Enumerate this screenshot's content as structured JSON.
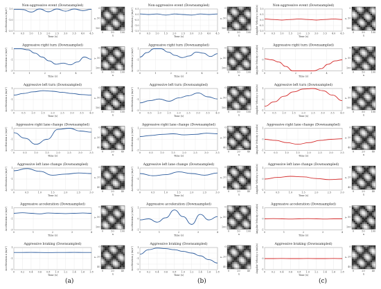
{
  "panel_labels": [
    "(a)",
    "(b)",
    "(c)"
  ],
  "chart_data": [
    {
      "type": "line",
      "column": "a",
      "title": "Non-aggressive event (Downsampled)",
      "ylabel": "Acceleration x (m/s²)",
      "xlabel": "Time (s)",
      "xticks": [
        "0",
        "0.5",
        "1.0",
        "1.5",
        "2.0",
        "2.5",
        "3.0",
        "3.5",
        "4.0",
        "4.5"
      ],
      "yticks": [
        "-3.0",
        "-1.0",
        "1.0"
      ],
      "color": "#2a5a9c",
      "x": [
        0,
        0.5,
        1,
        1.5,
        2,
        2.5,
        3,
        3.5,
        4,
        4.5
      ],
      "y": [
        0.95,
        0.9,
        0.45,
        1.1,
        0.5,
        1.05,
        0.6,
        1.0,
        0.7,
        0.95
      ],
      "matrix": {
        "xticks": [
          "0",
          "50",
          "100"
        ],
        "yticks": [
          "0",
          "50",
          "100"
        ],
        "xlabel": "x",
        "ylabel": "y"
      }
    },
    {
      "type": "line",
      "column": "b",
      "title": "Non-aggressive event (Downsampled)",
      "ylabel": "Acceleration y (m/s²)",
      "xlabel": "Time (s)",
      "xticks": [
        "0",
        "0.5",
        "1.0",
        "1.5",
        "2.0",
        "2.5",
        "3.0",
        "3.5",
        "4.0",
        "4.5"
      ],
      "yticks": [
        "-1.5",
        "-1.0",
        "-0.5",
        "0.0",
        "0.5"
      ],
      "color": "#2a5a9c",
      "x": [
        0,
        0.5,
        1,
        1.5,
        2,
        2.5,
        3,
        3.5,
        4,
        4.5
      ],
      "y": [
        0.05,
        0.0,
        0.05,
        -0.05,
        0.05,
        0.0,
        -0.05,
        0.05,
        0.0,
        0.05
      ],
      "matrix": {
        "xticks": [
          "0",
          "50",
          "100"
        ],
        "yticks": [
          "0",
          "50",
          "100"
        ],
        "xlabel": "x",
        "ylabel": "y"
      }
    },
    {
      "type": "line",
      "column": "c",
      "title": "Non-aggressive event (Downsampled)",
      "ylabel": "Angular Velocity z (rad/s)",
      "xlabel": "Time (s)",
      "xticks": [
        "0",
        "0.5",
        "1.0",
        "1.5",
        "2.0",
        "2.5",
        "3.0",
        "3.5",
        "4.0",
        "4.5"
      ],
      "yticks": [
        "-1.0",
        "-0.5",
        "0.0",
        "0.5",
        "1.0"
      ],
      "color": "#d42a2a",
      "x": [
        0,
        0.5,
        1,
        1.5,
        2,
        2.5,
        3,
        3.5,
        4,
        4.5
      ],
      "y": [
        0.1,
        0.05,
        0.0,
        0.05,
        0.1,
        0.05,
        0.0,
        0.05,
        0.1,
        0.05
      ],
      "matrix": {
        "xticks": [
          "0",
          "50",
          "100"
        ],
        "yticks": [
          "0",
          "50",
          "100"
        ],
        "xlabel": "x",
        "ylabel": "y"
      }
    },
    {
      "type": "line",
      "column": "a",
      "title": "Aggressive right turn (Downsampled)",
      "ylabel": "Acceleration x (m/s²)",
      "xlabel": "Time (s)",
      "xticks": [
        "0",
        "1",
        "2",
        "3",
        "4",
        "5"
      ],
      "yticks": [
        "-3",
        "-1",
        "1"
      ],
      "color": "#2a5a9c",
      "x": [
        0,
        0.5,
        1,
        1.5,
        2,
        2.5,
        3,
        3.5,
        4,
        4.5,
        5,
        5.5
      ],
      "y": [
        1.1,
        1.0,
        0.8,
        0.2,
        -0.5,
        -1.2,
        -1.8,
        -1.6,
        -1.9,
        -1.4,
        -0.5,
        -0.9
      ],
      "matrix": {
        "xticks": [
          "0",
          "50",
          "100"
        ],
        "yticks": [
          "0",
          "50",
          "100"
        ],
        "xlabel": "x",
        "ylabel": "y"
      }
    },
    {
      "type": "line",
      "column": "b",
      "title": "Aggressive right turn (Downsampled)",
      "ylabel": "Acceleration y (m/s²)",
      "xlabel": "Time (s)",
      "xticks": [
        "0",
        "1",
        "2",
        "3",
        "4",
        "5"
      ],
      "yticks": [
        "-3",
        "-1",
        "1"
      ],
      "color": "#2a5a9c",
      "x": [
        0,
        0.5,
        1,
        1.5,
        2,
        2.5,
        3,
        3.5,
        4,
        4.5,
        5,
        5.5
      ],
      "y": [
        -0.5,
        0.3,
        1.2,
        1.0,
        0.4,
        -0.2,
        -0.6,
        -0.3,
        0.4,
        0.2,
        -0.4,
        0.1
      ],
      "matrix": {
        "xticks": [
          "0",
          "50",
          "100"
        ],
        "yticks": [
          "0",
          "50",
          "100"
        ],
        "xlabel": "x",
        "ylabel": "y"
      }
    },
    {
      "type": "line",
      "column": "c",
      "title": "Aggressive right turn (Downsampled)",
      "ylabel": "Angular Velocity z (rad/s)",
      "xlabel": "Time (s)",
      "xticks": [
        "0",
        "1",
        "2",
        "3",
        "4",
        "5"
      ],
      "yticks": [
        "-1",
        "0",
        "1"
      ],
      "color": "#d42a2a",
      "x": [
        0,
        0.5,
        1,
        1.5,
        2,
        2.5,
        3,
        3.5,
        4,
        4.5,
        5,
        5.5
      ],
      "y": [
        0.1,
        0.0,
        -0.2,
        -0.6,
        -1.0,
        -1.2,
        -1.25,
        -1.1,
        -0.8,
        -0.4,
        -0.1,
        0.0
      ],
      "matrix": {
        "xticks": [
          "0",
          "50",
          "100"
        ],
        "yticks": [
          "0",
          "50",
          "100"
        ],
        "xlabel": "x",
        "ylabel": "y"
      }
    },
    {
      "type": "line",
      "column": "a",
      "title": "Aggressive left turn (Downsampled)",
      "ylabel": "Acceleration x (m/s²)",
      "xlabel": "Time (s)",
      "xticks": [
        "0",
        "0.5",
        "1.0",
        "1.5",
        "2.0",
        "2.5",
        "3.0",
        "3.5",
        "4.0"
      ],
      "yticks": [
        "-3",
        "-1",
        "1"
      ],
      "color": "#2a5a9c",
      "x": [
        0,
        0.5,
        1,
        1.5,
        2,
        2.5,
        3,
        3.5,
        4
      ],
      "y": [
        -0.2,
        0.1,
        0.4,
        0.6,
        0.5,
        0.3,
        0.1,
        -0.1,
        -0.2
      ],
      "matrix": {
        "xticks": [
          "0",
          "50",
          "100"
        ],
        "yticks": [
          "0",
          "50",
          "100"
        ],
        "xlabel": "x",
        "ylabel": "y"
      }
    },
    {
      "type": "line",
      "column": "b",
      "title": "Aggressive left turn (Downsampled)",
      "ylabel": "Acceleration y (m/s²)",
      "xlabel": "Time (s)",
      "xticks": [
        "0",
        "0.5",
        "1.0",
        "1.5",
        "2.0",
        "2.5",
        "3.0",
        "3.5",
        "4.0"
      ],
      "yticks": [
        "-3",
        "-1",
        "1"
      ],
      "color": "#2a5a9c",
      "x": [
        0,
        0.5,
        1,
        1.5,
        2,
        2.5,
        3,
        3.5,
        4
      ],
      "y": [
        -1.6,
        -1.2,
        -0.9,
        -1.3,
        -0.7,
        -0.3,
        0.2,
        -0.5,
        -0.9
      ],
      "matrix": {
        "xticks": [
          "0",
          "50",
          "100"
        ],
        "yticks": [
          "0",
          "50",
          "100"
        ],
        "xlabel": "x",
        "ylabel": "y"
      }
    },
    {
      "type": "line",
      "column": "c",
      "title": "Aggressive left turn (Downsampled)",
      "ylabel": "Angular Velocity z (rad/s)",
      "xlabel": "Time (s)",
      "xticks": [
        "0",
        "0.5",
        "1.0",
        "1.5",
        "2.0",
        "2.5",
        "3.0",
        "3.5",
        "4.0"
      ],
      "yticks": [
        "-1",
        "0",
        "1"
      ],
      "color": "#d42a2a",
      "x": [
        0,
        0.5,
        1,
        1.5,
        2,
        2.5,
        3,
        3.5,
        4
      ],
      "y": [
        -0.6,
        -0.2,
        0.3,
        0.7,
        0.95,
        1.0,
        0.8,
        0.4,
        -0.1
      ],
      "matrix": {
        "xticks": [
          "0",
          "50",
          "100"
        ],
        "yticks": [
          "0",
          "50",
          "100"
        ],
        "xlabel": "x",
        "ylabel": "y"
      }
    },
    {
      "type": "line",
      "column": "a",
      "title": "Aggressive right lane change (Downsampled)",
      "ylabel": "Acceleration x (m/s²)",
      "xlabel": "Time (s)",
      "xticks": [
        "0",
        "0.5",
        "1.0",
        "1.5",
        "2.0",
        "2.5",
        "3.0",
        "3.5"
      ],
      "yticks": [
        "-3",
        "-1",
        "1"
      ],
      "color": "#2a5a9c",
      "x": [
        0,
        0.5,
        1,
        1.5,
        2,
        2.5,
        3,
        3.5
      ],
      "y": [
        0.2,
        -0.8,
        -1.9,
        -1.0,
        0.8,
        1.1,
        0.5,
        0.3
      ],
      "matrix": {
        "xticks": [
          "0",
          "20",
          "40"
        ],
        "yticks": [
          "0",
          "20",
          "40"
        ],
        "xlabel": "x",
        "ylabel": "y"
      }
    },
    {
      "type": "line",
      "column": "b",
      "title": "Aggressive right lane change (Downsampled)",
      "ylabel": "Acceleration y (m/s²)",
      "xlabel": "Time (s)",
      "xticks": [
        "0",
        "0.5",
        "1.0",
        "1.5",
        "2.0",
        "2.5",
        "3.0",
        "3.5"
      ],
      "yticks": [
        "-3",
        "-1",
        "1"
      ],
      "color": "#2a5a9c",
      "x": [
        0,
        0.5,
        1,
        1.5,
        2,
        2.5,
        3,
        3.5
      ],
      "y": [
        -0.5,
        -0.3,
        -0.1,
        0.0,
        -0.2,
        -0.1,
        0.1,
        0.0
      ],
      "matrix": {
        "xticks": [
          "0",
          "20",
          "40"
        ],
        "yticks": [
          "0",
          "20",
          "40"
        ],
        "xlabel": "x",
        "ylabel": "y"
      }
    },
    {
      "type": "line",
      "column": "c",
      "title": "Aggressive right lane change (Downsampled)",
      "ylabel": "Angular Velocity z (rad/s)",
      "xlabel": "Time (s)",
      "xticks": [
        "0",
        "0.5",
        "1.0",
        "1.5",
        "2.0",
        "2.5",
        "3.0",
        "3.5"
      ],
      "yticks": [
        "-1",
        "0",
        "1"
      ],
      "color": "#d42a2a",
      "x": [
        0,
        0.5,
        1,
        1.5,
        2,
        2.5,
        3,
        3.5
      ],
      "y": [
        0.0,
        -0.1,
        -0.3,
        -0.45,
        -0.3,
        -0.1,
        0.0,
        0.05
      ],
      "matrix": {
        "xticks": [
          "0",
          "20",
          "40"
        ],
        "yticks": [
          "0",
          "20",
          "40"
        ],
        "xlabel": "x",
        "ylabel": "y"
      }
    },
    {
      "type": "line",
      "column": "a",
      "title": "Aggressive left lane change (Downsampled)",
      "ylabel": "Acceleration x (m/s²)",
      "xlabel": "Time (s)",
      "xticks": [
        "0",
        "0.5",
        "1.0",
        "1.5",
        "2.0",
        "2.5",
        "3.0"
      ],
      "yticks": [
        "-3",
        "-1",
        "1"
      ],
      "color": "#2a5a9c",
      "x": [
        0,
        0.5,
        1,
        1.5,
        2,
        2.5,
        3
      ],
      "y": [
        0.5,
        0.9,
        0.4,
        -0.3,
        -0.1,
        0.1,
        0.0
      ],
      "matrix": {
        "xticks": [
          "0",
          "20",
          "40"
        ],
        "yticks": [
          "0",
          "20",
          "40"
        ],
        "xlabel": "x",
        "ylabel": "y"
      }
    },
    {
      "type": "line",
      "column": "b",
      "title": "Aggressive left lane change (Downsampled)",
      "ylabel": "Acceleration y (m/s²)",
      "xlabel": "Time (s)",
      "xticks": [
        "0",
        "0.5",
        "1.0",
        "1.5",
        "2.0",
        "2.5",
        "3.0"
      ],
      "yticks": [
        "-3",
        "-1",
        "1"
      ],
      "color": "#2a5a9c",
      "x": [
        0,
        0.5,
        1,
        1.5,
        2,
        2.5,
        3
      ],
      "y": [
        0.0,
        -0.4,
        -0.2,
        0.3,
        0.0,
        -0.3,
        0.1
      ],
      "matrix": {
        "xticks": [
          "0",
          "20",
          "40"
        ],
        "yticks": [
          "0",
          "20",
          "40"
        ],
        "xlabel": "x",
        "ylabel": "y"
      }
    },
    {
      "type": "line",
      "column": "c",
      "title": "Aggressive left lane change (Downsampled)",
      "ylabel": "Angular Velocity z (rad/s)",
      "xlabel": "Time (s)",
      "xticks": [
        "0",
        "0.5",
        "1.0",
        "1.5",
        "2.0",
        "2.5",
        "3.0"
      ],
      "yticks": [
        "-1",
        "0",
        "1"
      ],
      "color": "#d42a2a",
      "x": [
        0,
        0.5,
        1,
        1.5,
        2,
        2.5,
        3
      ],
      "y": [
        0.0,
        0.15,
        0.25,
        0.2,
        0.05,
        -0.05,
        0.0
      ],
      "matrix": {
        "xticks": [
          "0",
          "20",
          "40"
        ],
        "yticks": [
          "0",
          "20",
          "40"
        ],
        "xlabel": "x",
        "ylabel": "y"
      }
    },
    {
      "type": "line",
      "column": "a",
      "title": "Aggressive acceleration (Downsampled)",
      "ylabel": "Acceleration x (m/s²)",
      "xlabel": "Time (s)",
      "xticks": [
        "0",
        "1",
        "2",
        "3",
        "4"
      ],
      "yticks": [
        "-3",
        "-1",
        "1"
      ],
      "color": "#2a5a9c",
      "x": [
        0,
        0.5,
        1,
        1.5,
        2,
        2.5,
        3,
        3.5,
        4,
        4.5
      ],
      "y": [
        0.0,
        0.1,
        0.0,
        -0.1,
        0.05,
        0.0,
        -0.05,
        0.0,
        0.05,
        0.0
      ],
      "matrix": {
        "xticks": [
          "0",
          "50",
          "100"
        ],
        "yticks": [
          "0",
          "50",
          "100"
        ],
        "xlabel": "x",
        "ylabel": "y"
      }
    },
    {
      "type": "line",
      "column": "b",
      "title": "Aggressive acceleration (Downsampled)",
      "ylabel": "Acceleration y (m/s²)",
      "xlabel": "Time (s)",
      "xticks": [
        "0",
        "1",
        "2",
        "3",
        "4"
      ],
      "yticks": [
        "-1",
        "0",
        "1"
      ],
      "color": "#2a5a9c",
      "x": [
        0,
        0.5,
        1,
        1.5,
        2,
        2.5,
        3,
        3.5,
        4,
        4.5
      ],
      "y": [
        -0.1,
        0.0,
        -0.3,
        0.1,
        0.8,
        0.2,
        -0.5,
        0.4,
        -0.1,
        0.2
      ],
      "matrix": {
        "xticks": [
          "0",
          "50",
          "100"
        ],
        "yticks": [
          "0",
          "50",
          "100"
        ],
        "xlabel": "x",
        "ylabel": "y"
      }
    },
    {
      "type": "line",
      "column": "c",
      "title": "Aggressive acceleration (Downsampled)",
      "ylabel": "Angular Velocity z (rad/s)",
      "xlabel": "Time (s)",
      "xticks": [
        "0",
        "1",
        "2",
        "3",
        "4"
      ],
      "yticks": [
        "-1",
        "0",
        "1"
      ],
      "color": "#d42a2a",
      "x": [
        0,
        0.5,
        1,
        1.5,
        2,
        2.5,
        3,
        3.5,
        4,
        4.5
      ],
      "y": [
        0.0,
        0.02,
        0.0,
        -0.02,
        0.0,
        0.02,
        0.0,
        -0.02,
        0.0,
        0.0
      ],
      "matrix": {
        "xticks": [
          "0",
          "50",
          "100"
        ],
        "yticks": [
          "0",
          "50",
          "100"
        ],
        "xlabel": "x",
        "ylabel": "y"
      }
    },
    {
      "type": "line",
      "column": "a",
      "title": "Aggressive braking (Downsampled)",
      "ylabel": "Acceleration x (m/s²)",
      "xlabel": "Time (s)",
      "xticks": [
        "0",
        "0.2",
        "0.4",
        "0.6",
        "0.8",
        "1.0",
        "1.2",
        "1.4",
        "1.6",
        "1.8"
      ],
      "yticks": [
        "-3",
        "-1",
        "1"
      ],
      "color": "#2a5a9c",
      "x": [
        0,
        0.2,
        0.4,
        0.6,
        0.8,
        1,
        1.2,
        1.4,
        1.6,
        1.8
      ],
      "y": [
        0.1,
        0.1,
        0.12,
        0.1,
        0.08,
        0.1,
        0.1,
        0.12,
        0.1,
        0.1
      ],
      "matrix": {
        "xticks": [
          "0",
          "20",
          "40"
        ],
        "yticks": [
          "0",
          "20",
          "40"
        ],
        "xlabel": "x",
        "ylabel": "y"
      }
    },
    {
      "type": "line",
      "column": "b",
      "title": "Aggressive braking (Downsampled)",
      "ylabel": "Acceleration y (m/s²)",
      "xlabel": "Time (s)",
      "xticks": [
        "0",
        "0.2",
        "0.4",
        "0.6",
        "0.8",
        "1.0",
        "1.2",
        "1.4",
        "1.6",
        "1.8"
      ],
      "yticks": [
        "-3",
        "-2",
        "-1",
        "0",
        "1"
      ],
      "color": "#2a5a9c",
      "x": [
        0,
        0.2,
        0.4,
        0.6,
        0.8,
        1,
        1.2,
        1.4,
        1.6,
        1.8
      ],
      "y": [
        -0.2,
        0.6,
        0.9,
        0.8,
        0.6,
        0.3,
        0.0,
        -0.5,
        -1.2,
        -1.8
      ],
      "matrix": {
        "xticks": [
          "0",
          "20",
          "40"
        ],
        "yticks": [
          "0",
          "20",
          "40"
        ],
        "xlabel": "x",
        "ylabel": "y"
      }
    },
    {
      "type": "line",
      "column": "c",
      "title": "Aggressive braking (Downsampled)",
      "ylabel": "Angular Velocity z (rad/s)",
      "xlabel": "Time (s)",
      "xticks": [
        "0",
        "0.2",
        "0.4",
        "0.6",
        "0.8",
        "1.0",
        "1.2",
        "1.4",
        "1.6",
        "1.8"
      ],
      "yticks": [
        "-1",
        "0",
        "1"
      ],
      "color": "#d42a2a",
      "x": [
        0,
        0.2,
        0.4,
        0.6,
        0.8,
        1,
        1.2,
        1.4,
        1.6,
        1.8
      ],
      "y": [
        0.0,
        0.0,
        0.01,
        0.0,
        0.0,
        0.01,
        0.0,
        0.0,
        0.01,
        0.0
      ],
      "matrix": {
        "xticks": [
          "0",
          "20",
          "40"
        ],
        "yticks": [
          "0",
          "20",
          "40"
        ],
        "xlabel": "x",
        "ylabel": "y"
      }
    }
  ]
}
